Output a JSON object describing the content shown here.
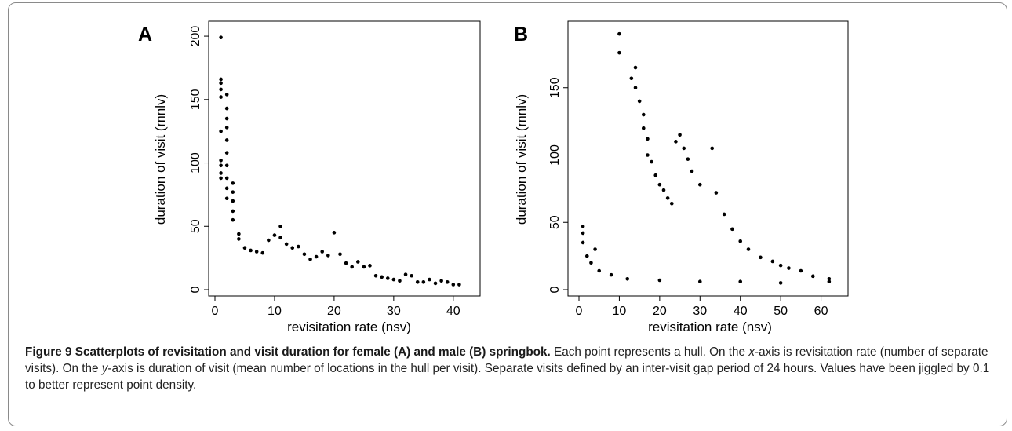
{
  "figure": {
    "label": "Figure 9",
    "title": "Scatterplots of revisitation and visit duration for female (A) and male (B) springbok.",
    "caption_parts": [
      {
        "text": " Each point represents a hull. On the ",
        "italic": false
      },
      {
        "text": "x",
        "italic": true
      },
      {
        "text": "-axis is revisitation rate (number of separate visits). On the ",
        "italic": false
      },
      {
        "text": "y",
        "italic": true
      },
      {
        "text": "-axis is duration of visit (mean number of locations in the hull per visit). Separate visits defined by an inter-visit gap period of 24 hours. Values have been jiggled by 0.1 to better represent point density.",
        "italic": false
      }
    ]
  },
  "chart_data": [
    {
      "panel": "A",
      "type": "scatter",
      "xlabel": "revisitation rate (nsv)",
      "ylabel": "duration of visit (mnlv)",
      "xlim": [
        0,
        42
      ],
      "ylim": [
        0,
        205
      ],
      "xticks": [
        0,
        10,
        20,
        30,
        40
      ],
      "yticks": [
        0,
        50,
        100,
        150,
        200
      ],
      "point_color": "#000000",
      "points": [
        [
          1,
          199
        ],
        [
          1,
          166
        ],
        [
          1,
          163
        ],
        [
          1,
          158
        ],
        [
          1,
          152
        ],
        [
          1,
          125
        ],
        [
          1,
          102
        ],
        [
          1,
          98
        ],
        [
          1,
          92
        ],
        [
          1,
          88
        ],
        [
          2,
          154
        ],
        [
          2,
          143
        ],
        [
          2,
          135
        ],
        [
          2,
          128
        ],
        [
          2,
          118
        ],
        [
          2,
          108
        ],
        [
          2,
          98
        ],
        [
          2,
          88
        ],
        [
          2,
          80
        ],
        [
          2,
          72
        ],
        [
          3,
          84
        ],
        [
          3,
          77
        ],
        [
          3,
          70
        ],
        [
          3,
          62
        ],
        [
          3,
          55
        ],
        [
          4,
          44
        ],
        [
          4,
          40
        ],
        [
          5,
          33
        ],
        [
          6,
          31
        ],
        [
          7,
          30
        ],
        [
          8,
          29
        ],
        [
          9,
          39
        ],
        [
          10,
          43
        ],
        [
          11,
          50
        ],
        [
          11,
          41
        ],
        [
          12,
          36
        ],
        [
          13,
          33
        ],
        [
          14,
          34
        ],
        [
          15,
          28
        ],
        [
          16,
          24
        ],
        [
          17,
          26
        ],
        [
          18,
          30
        ],
        [
          19,
          27
        ],
        [
          20,
          45
        ],
        [
          21,
          28
        ],
        [
          22,
          21
        ],
        [
          23,
          18
        ],
        [
          24,
          22
        ],
        [
          25,
          18
        ],
        [
          26,
          19
        ],
        [
          27,
          11
        ],
        [
          28,
          10
        ],
        [
          29,
          9
        ],
        [
          30,
          8
        ],
        [
          31,
          7
        ],
        [
          32,
          12
        ],
        [
          33,
          11
        ],
        [
          34,
          6
        ],
        [
          35,
          6
        ],
        [
          36,
          8
        ],
        [
          37,
          5
        ],
        [
          38,
          7
        ],
        [
          39,
          6
        ],
        [
          40,
          4
        ],
        [
          41,
          4
        ]
      ]
    },
    {
      "panel": "B",
      "type": "scatter",
      "xlabel": "revisitation rate (nsv)",
      "ylabel": "duration of visit (mnlv)",
      "xlim": [
        0,
        63
      ],
      "ylim": [
        0,
        193
      ],
      "xticks": [
        0,
        10,
        20,
        30,
        40,
        50,
        60
      ],
      "yticks": [
        0,
        50,
        100,
        150
      ],
      "point_color": "#000000",
      "points": [
        [
          10,
          190
        ],
        [
          10,
          176
        ],
        [
          14,
          165
        ],
        [
          13,
          157
        ],
        [
          14,
          150
        ],
        [
          15,
          140
        ],
        [
          16,
          130
        ],
        [
          16,
          120
        ],
        [
          17,
          112
        ],
        [
          17,
          100
        ],
        [
          18,
          95
        ],
        [
          19,
          85
        ],
        [
          20,
          78
        ],
        [
          21,
          74
        ],
        [
          22,
          68
        ],
        [
          23,
          64
        ],
        [
          24,
          110
        ],
        [
          25,
          115
        ],
        [
          26,
          105
        ],
        [
          27,
          97
        ],
        [
          28,
          88
        ],
        [
          30,
          78
        ],
        [
          33,
          105
        ],
        [
          34,
          72
        ],
        [
          36,
          56
        ],
        [
          38,
          45
        ],
        [
          40,
          36
        ],
        [
          42,
          30
        ],
        [
          45,
          24
        ],
        [
          48,
          21
        ],
        [
          50,
          18
        ],
        [
          52,
          16
        ],
        [
          55,
          14
        ],
        [
          58,
          10
        ],
        [
          62,
          8
        ],
        [
          62,
          6
        ],
        [
          1,
          47
        ],
        [
          1,
          42
        ],
        [
          1,
          35
        ],
        [
          2,
          25
        ],
        [
          4,
          30
        ],
        [
          3,
          20
        ],
        [
          5,
          14
        ],
        [
          8,
          11
        ],
        [
          12,
          8
        ],
        [
          20,
          7
        ],
        [
          30,
          6
        ],
        [
          40,
          6
        ],
        [
          50,
          5
        ]
      ]
    }
  ]
}
